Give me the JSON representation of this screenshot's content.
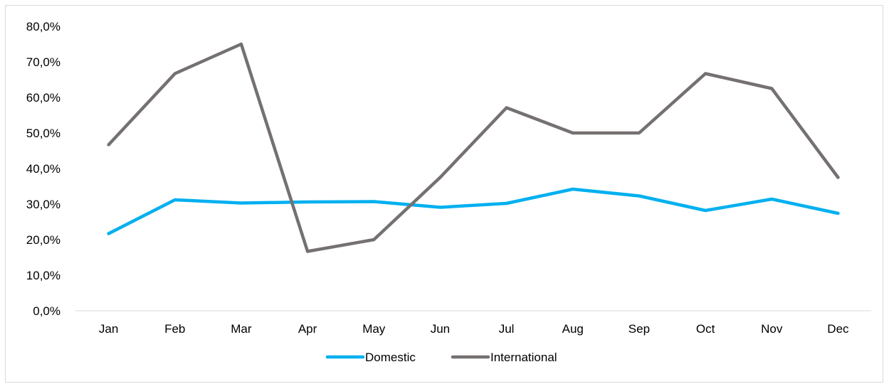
{
  "chart_data": {
    "type": "line",
    "title": "",
    "xlabel": "",
    "ylabel": "",
    "categories": [
      "Jan",
      "Feb",
      "Mar",
      "Apr",
      "May",
      "Jun",
      "Jul",
      "Aug",
      "Sep",
      "Oct",
      "Nov",
      "Dec"
    ],
    "ylim": [
      0,
      80
    ],
    "yticks": [
      0,
      10,
      20,
      30,
      40,
      50,
      60,
      70,
      80
    ],
    "ytick_labels": [
      "0,0%",
      "10,0%",
      "20,0%",
      "30,0%",
      "40,0%",
      "50,0%",
      "60,0%",
      "70,0%",
      "80,0%"
    ],
    "grid": false,
    "legend_position": "bottom",
    "series": [
      {
        "name": "Domestic",
        "color": "#00b0f0",
        "values": [
          21.7,
          31.2,
          30.3,
          30.6,
          30.7,
          29.1,
          30.2,
          34.2,
          32.3,
          28.2,
          31.4,
          27.4
        ]
      },
      {
        "name": "International",
        "color": "#767171",
        "values": [
          46.7,
          66.7,
          75.0,
          16.7,
          20.0,
          37.5,
          57.1,
          50.0,
          50.0,
          66.7,
          62.5,
          37.5
        ]
      }
    ]
  }
}
